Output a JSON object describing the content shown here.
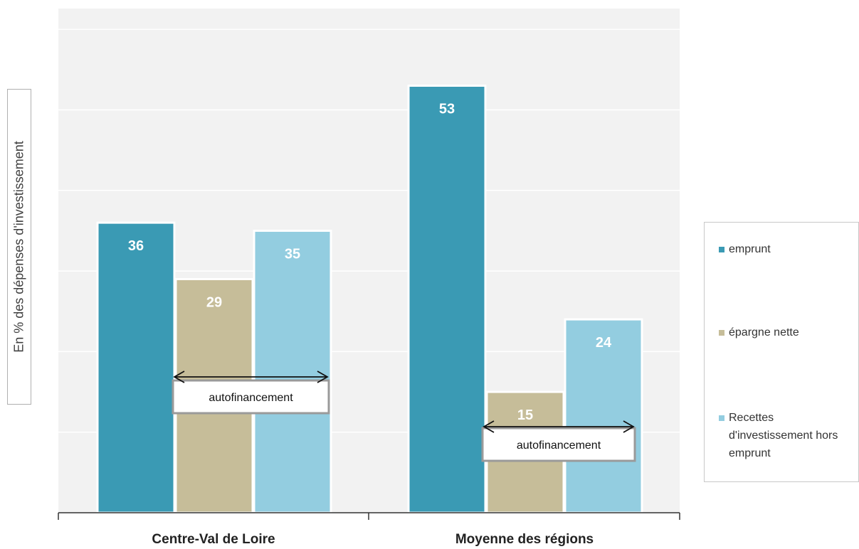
{
  "chart_data": {
    "type": "bar",
    "categories": [
      "Centre-Val de Loire",
      "Moyenne des régions"
    ],
    "series": [
      {
        "name": "emprunt",
        "color": "#3a9ab4",
        "values": [
          36,
          53
        ]
      },
      {
        "name": "épargne nette",
        "color": "#c6bd99",
        "values": [
          29,
          15
        ]
      },
      {
        "name": "Recettes d'investissement hors emprunt",
        "color": "#93cde0",
        "values": [
          35,
          24
        ]
      }
    ],
    "ylabel": "En % des dépenses d'investissement",
    "ylim": [
      0,
      60
    ],
    "grid": true,
    "legend": "right",
    "annotations": [
      {
        "text": "autofinancement",
        "category": "Centre-Val de Loire"
      },
      {
        "text": "autofinancement",
        "category": "Moyenne des régions"
      }
    ]
  }
}
